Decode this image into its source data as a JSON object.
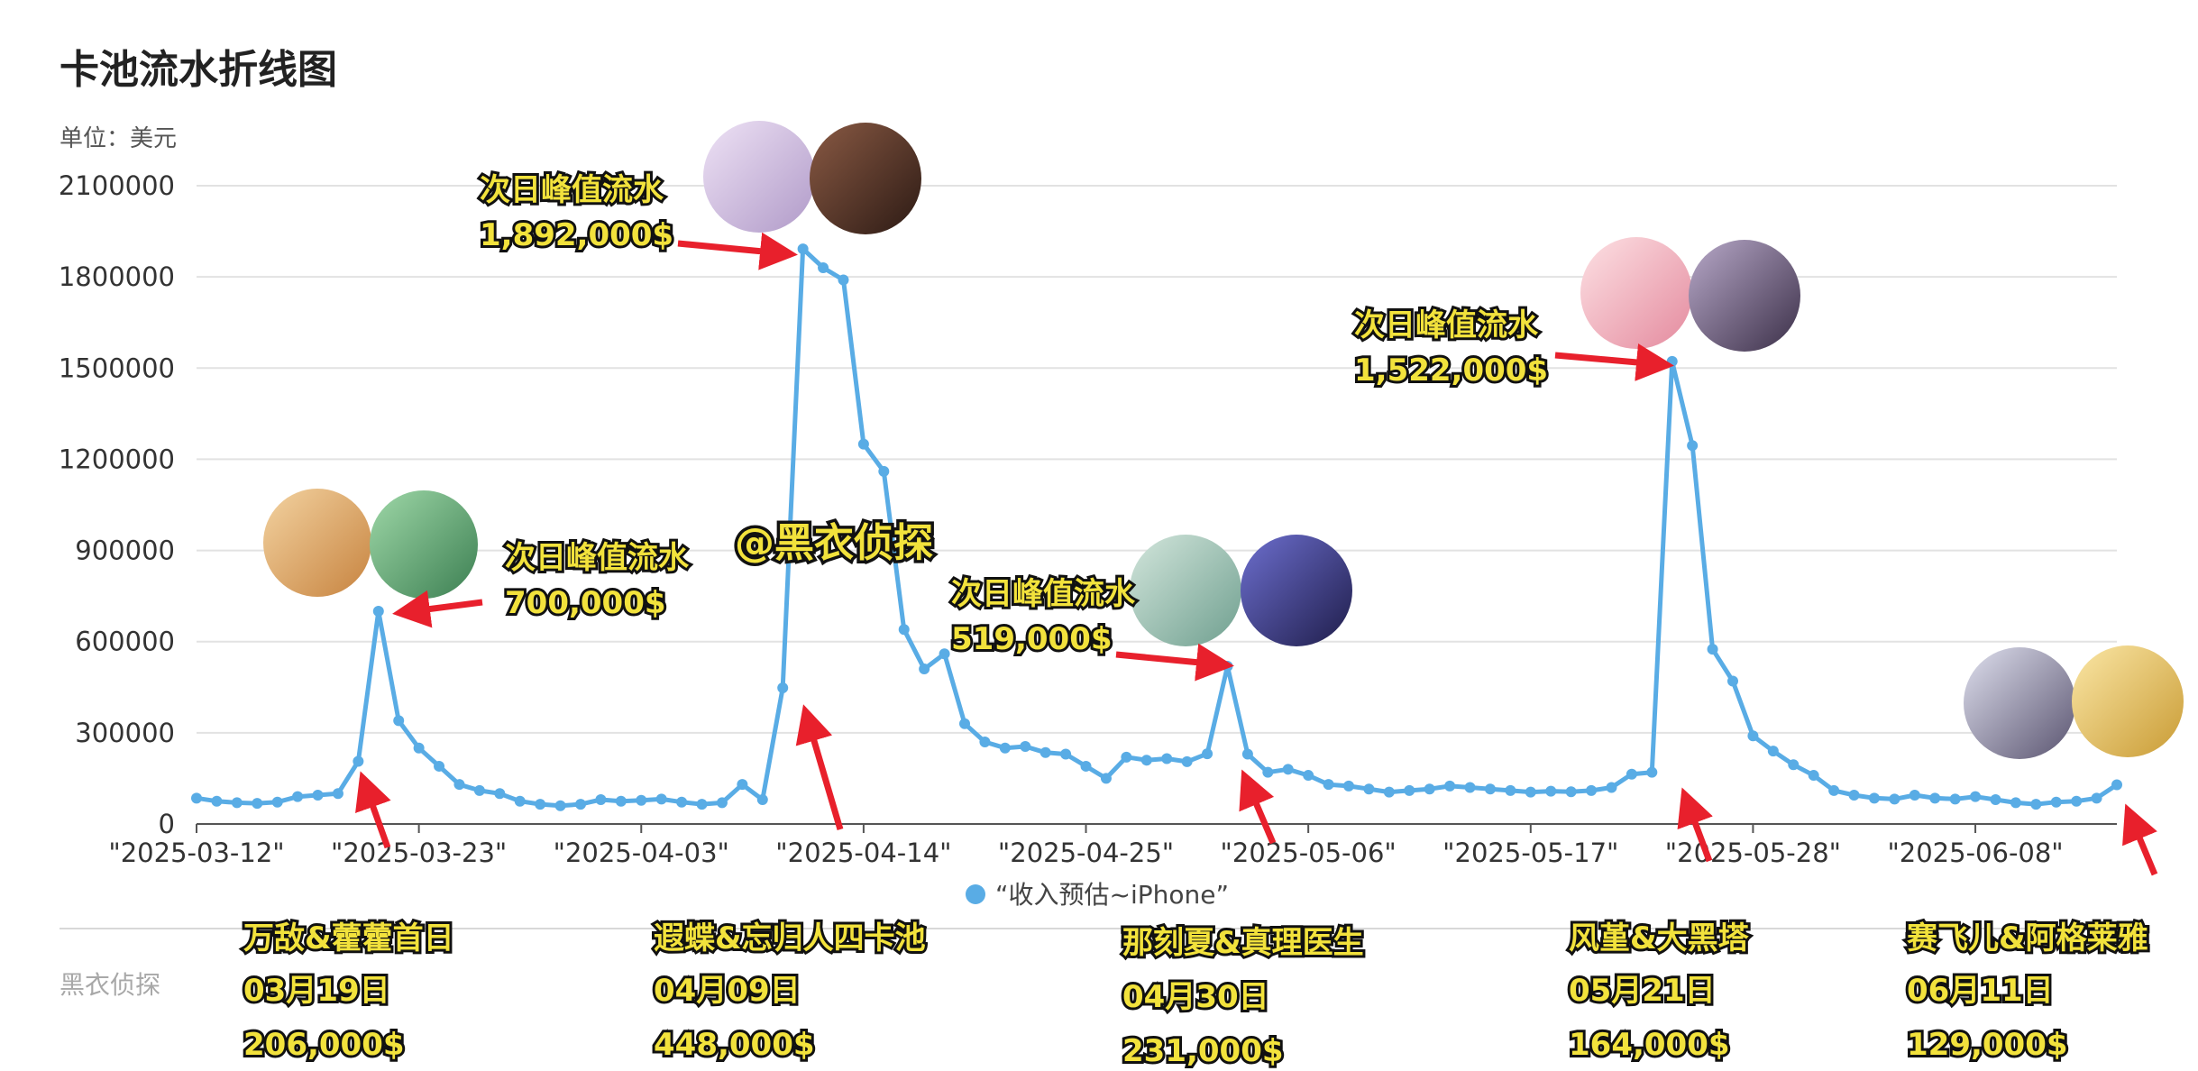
{
  "colors": {
    "line": "#59ace5",
    "arrow": "#e8202c",
    "annotation_fill": "#f2e23c",
    "annotation_stroke": "#111111",
    "grid": "#e2e2e2",
    "axis": "#555555"
  },
  "chart_data": {
    "type": "line",
    "title": "卡池流水折线图",
    "unit_label": "单位：美元",
    "ylim": [
      0,
      2100000
    ],
    "yticks": [
      0,
      300000,
      600000,
      900000,
      1200000,
      1500000,
      1800000,
      2100000
    ],
    "ytick_labels": [
      "0",
      "300000",
      "600000",
      "900000",
      "1200000",
      "1500000",
      "1800000",
      "2100000"
    ],
    "xtick_labels": [
      "\"2025-03-12\"",
      "\"2025-03-23\"",
      "\"2025-04-03\"",
      "\"2025-04-14\"",
      "\"2025-04-25\"",
      "\"2025-05-06\"",
      "\"2025-05-17\"",
      "\"2025-05-28\"",
      "\"2025-06-08\""
    ],
    "grid": true,
    "legend": {
      "position": "bottom",
      "label": "“收入预估~iPhone”"
    },
    "series": [
      {
        "name": "“收入预估~iPhone”",
        "x_start": "2025-03-12",
        "x_step_days": 1,
        "values": [
          85000,
          75000,
          70000,
          68000,
          72000,
          90000,
          95000,
          100000,
          206000,
          700000,
          340000,
          250000,
          190000,
          130000,
          110000,
          100000,
          75000,
          65000,
          60000,
          65000,
          80000,
          75000,
          78000,
          82000,
          72000,
          65000,
          70000,
          130000,
          80000,
          448000,
          1892000,
          1830000,
          1790000,
          1250000,
          1160000,
          640000,
          510000,
          560000,
          330000,
          270000,
          250000,
          255000,
          235000,
          230000,
          190000,
          150000,
          220000,
          210000,
          215000,
          205000,
          231000,
          519000,
          230000,
          170000,
          180000,
          160000,
          130000,
          125000,
          115000,
          105000,
          110000,
          115000,
          125000,
          120000,
          115000,
          110000,
          105000,
          108000,
          106000,
          110000,
          120000,
          164000,
          170000,
          1522000,
          1245000,
          575000,
          470000,
          290000,
          240000,
          195000,
          160000,
          110000,
          95000,
          85000,
          82000,
          95000,
          85000,
          82000,
          90000,
          80000,
          70000,
          65000,
          72000,
          75000,
          85000,
          129000
        ]
      }
    ]
  },
  "annotations": {
    "peak_label": "次日峰值流水",
    "peak1_value": "700,000$",
    "peak2_value": "1,892,000$",
    "peak3_value": "519,000$",
    "peak4_value": "1,522,000$",
    "watermark_center": "@黑衣侦探",
    "watermark_corner": "黑衣侦探",
    "pools": [
      {
        "name": "万敌&藿藿首日",
        "date": "03月19日",
        "revenue": "206,000$"
      },
      {
        "name": "遐蝶&忘归人四卡池",
        "date": "04月09日",
        "revenue": "448,000$"
      },
      {
        "name": "那刻夏&真理医生",
        "date": "04月30日",
        "revenue": "231,000$"
      },
      {
        "name": "风堇&大黑塔",
        "date": "05月21日",
        "revenue": "164,000$"
      },
      {
        "name": "赛飞儿&阿格莱雅",
        "date": "06月11日",
        "revenue": "129,000$"
      }
    ]
  }
}
